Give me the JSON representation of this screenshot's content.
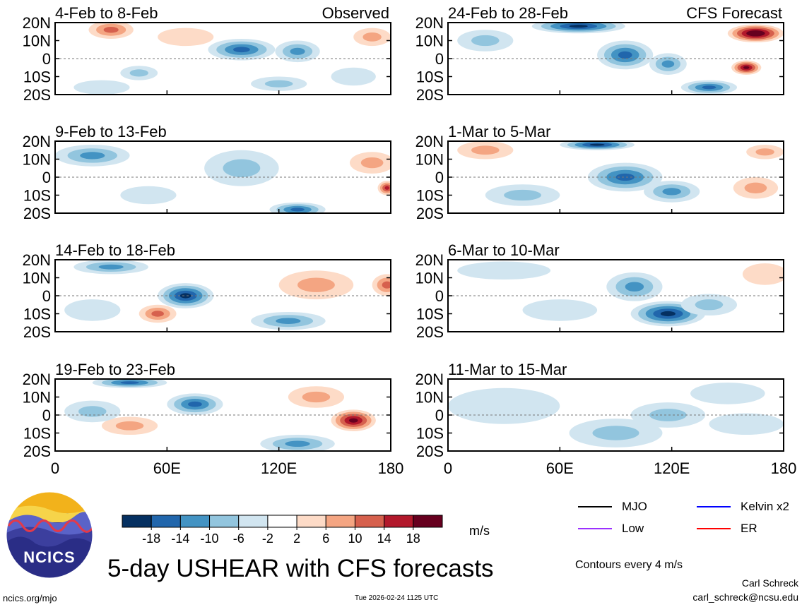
{
  "title": "5-day USHEAR with CFS forecasts",
  "source_url": "ncics.org/mjo",
  "timestamp": "Tue 2026-02-24 1125 UTC",
  "author": "Carl Schreck",
  "author_email": "carl_schreck@ncsu.edu",
  "logo": {
    "text": "NCICS"
  },
  "units": "m/s",
  "contour_note": "Contours every 4 m/s",
  "legend": [
    {
      "label": "MJO",
      "color": "#000000"
    },
    {
      "label": "Kelvin x2",
      "color": "#0000ff"
    },
    {
      "label": "Low",
      "color": "#9b30ff"
    },
    {
      "label": "ER",
      "color": "#ff0000"
    }
  ],
  "colorbar": {
    "colors": [
      "#053061",
      "#2166ac",
      "#4393c3",
      "#92c5de",
      "#d1e5f0",
      "#ffffff",
      "#fddbc7",
      "#f4a582",
      "#d6604d",
      "#b2182b",
      "#67001f"
    ],
    "tick_labels": [
      "-18",
      "-14",
      "-10",
      "-6",
      "-2",
      "2",
      "6",
      "10",
      "14",
      "18"
    ]
  },
  "chart_data": {
    "type": "heatmap",
    "variable": "USHEAR",
    "xlim": [
      0,
      180
    ],
    "ylim": [
      -20,
      20
    ],
    "x_ticks": [
      0,
      60,
      120,
      180
    ],
    "x_tick_labels": [
      "0",
      "60E",
      "120E",
      "180"
    ],
    "y_ticks": [
      20,
      10,
      0,
      -10,
      -20
    ],
    "y_tick_labels": [
      "20N",
      "10N",
      "0",
      "10S",
      "20S"
    ],
    "panels": [
      {
        "period": "4-Feb to 8-Feb",
        "label": "Observed",
        "column": 0,
        "row": 0,
        "blobs": [
          [
            30,
            16,
            12,
            5,
            10
          ],
          [
            45,
            -8,
            10,
            4,
            -6
          ],
          [
            100,
            5,
            18,
            6,
            -14
          ],
          [
            130,
            4,
            12,
            6,
            -10
          ],
          [
            25,
            -16,
            15,
            4,
            -4
          ],
          [
            170,
            12,
            10,
            5,
            6
          ],
          [
            160,
            -10,
            12,
            5,
            -2
          ],
          [
            70,
            12,
            15,
            5,
            4
          ],
          [
            120,
            -14,
            15,
            4,
            -6
          ]
        ]
      },
      {
        "period": "24-Feb to 28-Feb",
        "label": "CFS Forecast",
        "column": 1,
        "row": 0,
        "blobs": [
          [
            70,
            18,
            25,
            4,
            -20
          ],
          [
            95,
            2,
            15,
            8,
            -16
          ],
          [
            140,
            -16,
            15,
            4,
            -14
          ],
          [
            165,
            14,
            15,
            5,
            22
          ],
          [
            160,
            -5,
            8,
            4,
            20
          ],
          [
            20,
            10,
            15,
            6,
            -6
          ],
          [
            118,
            -3,
            10,
            6,
            -12
          ]
        ]
      },
      {
        "period": "9-Feb to 13-Feb",
        "label": "",
        "column": 0,
        "row": 1,
        "blobs": [
          [
            20,
            12,
            20,
            6,
            -12
          ],
          [
            100,
            5,
            20,
            10,
            -8
          ],
          [
            130,
            -18,
            15,
            4,
            -14
          ],
          [
            178,
            -6,
            5,
            4,
            14
          ],
          [
            170,
            8,
            12,
            6,
            8
          ],
          [
            50,
            -10,
            15,
            5,
            -4
          ]
        ]
      },
      {
        "period": "1-Mar to 5-Mar",
        "label": "",
        "column": 1,
        "row": 1,
        "blobs": [
          [
            95,
            0,
            20,
            8,
            -14
          ],
          [
            120,
            -8,
            15,
            6,
            -12
          ],
          [
            80,
            18,
            20,
            3,
            -18
          ],
          [
            165,
            -6,
            12,
            6,
            8
          ],
          [
            20,
            15,
            15,
            5,
            6
          ],
          [
            170,
            14,
            10,
            4,
            6
          ],
          [
            40,
            -10,
            20,
            6,
            -6
          ]
        ]
      },
      {
        "period": "14-Feb to 18-Feb",
        "label": "",
        "column": 0,
        "row": 2,
        "blobs": [
          [
            70,
            0,
            15,
            7,
            -18
          ],
          [
            30,
            16,
            20,
            4,
            -12
          ],
          [
            125,
            -14,
            20,
            5,
            -12
          ],
          [
            178,
            6,
            8,
            6,
            12
          ],
          [
            140,
            6,
            20,
            8,
            6
          ],
          [
            20,
            -8,
            15,
            6,
            -4
          ],
          [
            55,
            -10,
            10,
            5,
            10
          ]
        ]
      },
      {
        "period": "6-Mar to 10-Mar",
        "label": "",
        "column": 1,
        "row": 2,
        "blobs": [
          [
            118,
            -10,
            20,
            7,
            -18
          ],
          [
            100,
            5,
            15,
            8,
            -12
          ],
          [
            140,
            -5,
            15,
            6,
            -8
          ],
          [
            170,
            12,
            12,
            6,
            4
          ],
          [
            30,
            14,
            25,
            5,
            -2
          ],
          [
            60,
            -8,
            20,
            6,
            -4
          ]
        ]
      },
      {
        "period": "19-Feb to 23-Feb",
        "label": "",
        "column": 0,
        "row": 3,
        "blobs": [
          [
            75,
            6,
            15,
            6,
            -16
          ],
          [
            40,
            18,
            20,
            3,
            -14
          ],
          [
            130,
            -16,
            20,
            5,
            -10
          ],
          [
            160,
            -3,
            12,
            6,
            18
          ],
          [
            140,
            10,
            15,
            6,
            8
          ],
          [
            40,
            -6,
            15,
            5,
            8
          ],
          [
            20,
            2,
            15,
            6,
            -8
          ]
        ]
      },
      {
        "period": "11-Mar to 15-Mar",
        "label": "",
        "column": 1,
        "row": 3,
        "blobs": [
          [
            118,
            0,
            20,
            7,
            -8
          ],
          [
            90,
            -10,
            25,
            8,
            -6
          ],
          [
            160,
            -5,
            20,
            6,
            -4
          ],
          [
            30,
            5,
            30,
            10,
            -4
          ],
          [
            150,
            12,
            20,
            6,
            -3
          ]
        ]
      }
    ]
  }
}
